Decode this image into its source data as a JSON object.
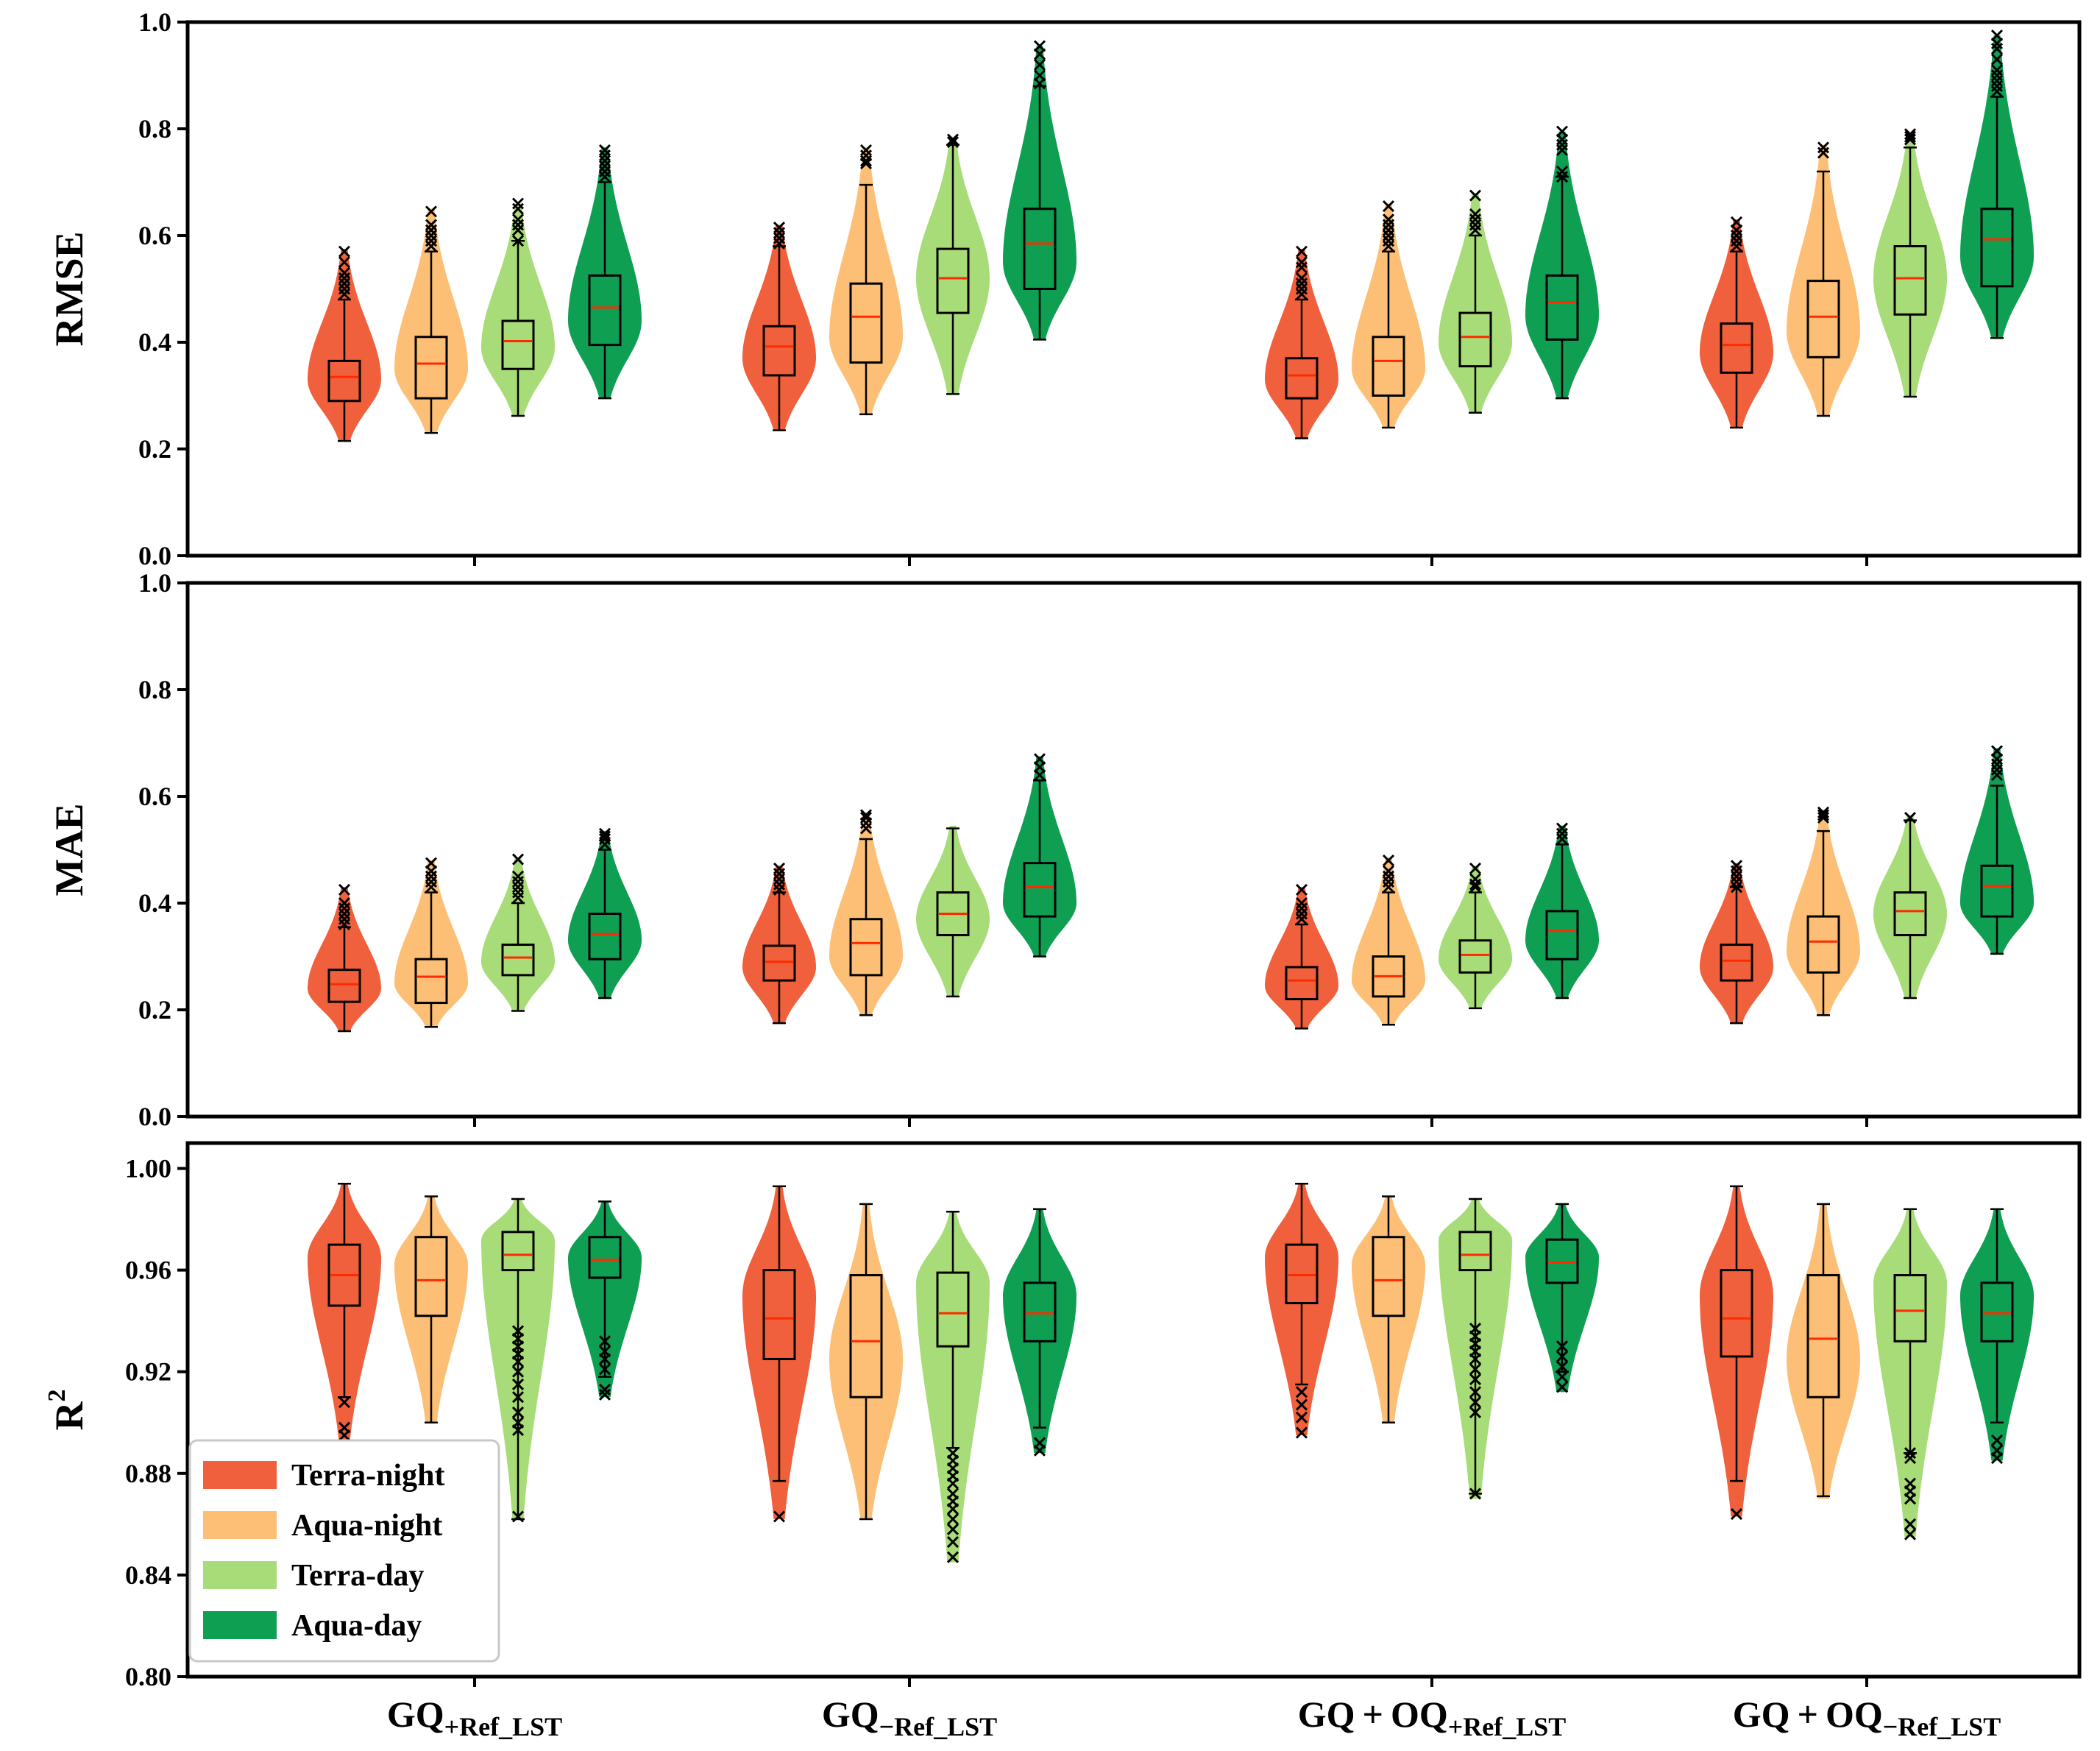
{
  "chart_data": {
    "type": "violin",
    "groups": [
      {
        "main": "GQ",
        "sub": "+Ref_LST"
      },
      {
        "main": "GQ",
        "sub": "−Ref_LST"
      },
      {
        "main": "GQ + OQ",
        "sub": "+Ref_LST"
      },
      {
        "main": "GQ + OQ",
        "sub": "−Ref_LST"
      }
    ],
    "series": [
      {
        "name": "Terra-night",
        "color": "#F0603C"
      },
      {
        "name": "Aqua-night",
        "color": "#FDBF76"
      },
      {
        "name": "Terra-day",
        "color": "#A8DC78"
      },
      {
        "name": "Aqua-day",
        "color": "#0E9F52"
      }
    ],
    "legend_position": "lower-left of bottom panel",
    "panels": [
      {
        "ylabel": "RMSE",
        "ylim": [
          0.0,
          1.0
        ],
        "yticks": [
          "0.0",
          "0.2",
          "0.4",
          "0.6",
          "0.8",
          "1.0"
        ],
        "ytick_values": [
          0.0,
          0.2,
          0.4,
          0.6,
          0.8,
          1.0
        ],
        "data": [
          [
            {
              "min": 0.215,
              "q1": 0.29,
              "median": 0.335,
              "q3": 0.365,
              "max": 0.48,
              "peak": 0.33,
              "vmax": 0.575,
              "outliers": [
                0.57,
                0.55,
                0.53,
                0.52,
                0.51,
                0.5,
                0.49
              ]
            },
            {
              "min": 0.23,
              "q1": 0.295,
              "median": 0.36,
              "q3": 0.41,
              "max": 0.57,
              "peak": 0.35,
              "vmax": 0.65,
              "outliers": [
                0.645,
                0.62,
                0.61,
                0.6,
                0.59,
                0.58
              ]
            },
            {
              "min": 0.262,
              "q1": 0.35,
              "median": 0.402,
              "q3": 0.44,
              "max": 0.59,
              "peak": 0.39,
              "vmax": 0.66,
              "outliers": [
                0.66,
                0.65,
                0.63,
                0.62,
                0.61,
                0.59
              ]
            },
            {
              "min": 0.295,
              "q1": 0.395,
              "median": 0.465,
              "q3": 0.525,
              "max": 0.7,
              "peak": 0.44,
              "vmax": 0.765,
              "outliers": [
                0.76,
                0.75,
                0.74,
                0.73,
                0.72,
                0.71
              ]
            }
          ],
          [
            {
              "min": 0.235,
              "q1": 0.338,
              "median": 0.392,
              "q3": 0.43,
              "max": 0.58,
              "peak": 0.37,
              "vmax": 0.62,
              "outliers": [
                0.615,
                0.605,
                0.595,
                0.585
              ]
            },
            {
              "min": 0.265,
              "q1": 0.362,
              "median": 0.448,
              "q3": 0.51,
              "max": 0.695,
              "peak": 0.41,
              "vmax": 0.765,
              "outliers": [
                0.76,
                0.75,
                0.74,
                0.735
              ]
            },
            {
              "min": 0.303,
              "q1": 0.455,
              "median": 0.52,
              "q3": 0.575,
              "max": 0.77,
              "peak": 0.52,
              "vmax": 0.785,
              "outliers": [
                0.78,
                0.775
              ]
            },
            {
              "min": 0.405,
              "q1": 0.5,
              "median": 0.585,
              "q3": 0.65,
              "max": 0.88,
              "peak": 0.55,
              "vmax": 0.955,
              "outliers": [
                0.955,
                0.94,
                0.92,
                0.9,
                0.885
              ]
            }
          ],
          [
            {
              "min": 0.22,
              "q1": 0.295,
              "median": 0.338,
              "q3": 0.37,
              "max": 0.48,
              "peak": 0.33,
              "vmax": 0.575,
              "outliers": [
                0.57,
                0.55,
                0.54,
                0.52,
                0.51,
                0.5,
                0.49
              ]
            },
            {
              "min": 0.24,
              "q1": 0.3,
              "median": 0.365,
              "q3": 0.41,
              "max": 0.57,
              "peak": 0.35,
              "vmax": 0.66,
              "outliers": [
                0.655,
                0.63,
                0.62,
                0.61,
                0.6,
                0.59,
                0.58
              ]
            },
            {
              "min": 0.268,
              "q1": 0.355,
              "median": 0.41,
              "q3": 0.455,
              "max": 0.6,
              "peak": 0.4,
              "vmax": 0.68,
              "outliers": [
                0.675,
                0.64,
                0.63,
                0.62,
                0.61
              ]
            },
            {
              "min": 0.295,
              "q1": 0.405,
              "median": 0.475,
              "q3": 0.525,
              "max": 0.71,
              "peak": 0.45,
              "vmax": 0.795,
              "outliers": [
                0.795,
                0.78,
                0.77,
                0.76,
                0.72,
                0.71
              ]
            }
          ],
          [
            {
              "min": 0.24,
              "q1": 0.343,
              "median": 0.395,
              "q3": 0.435,
              "max": 0.57,
              "peak": 0.38,
              "vmax": 0.63,
              "outliers": [
                0.625,
                0.61,
                0.6,
                0.59,
                0.58
              ]
            },
            {
              "min": 0.262,
              "q1": 0.372,
              "median": 0.448,
              "q3": 0.515,
              "max": 0.72,
              "peak": 0.42,
              "vmax": 0.77,
              "outliers": [
                0.765,
                0.755
              ]
            },
            {
              "min": 0.298,
              "q1": 0.452,
              "median": 0.52,
              "q3": 0.58,
              "max": 0.765,
              "peak": 0.52,
              "vmax": 0.79,
              "outliers": [
                0.79,
                0.785,
                0.78
              ]
            },
            {
              "min": 0.408,
              "q1": 0.505,
              "median": 0.593,
              "q3": 0.65,
              "max": 0.86,
              "peak": 0.56,
              "vmax": 0.975,
              "outliers": [
                0.975,
                0.96,
                0.95,
                0.93,
                0.91,
                0.9,
                0.89,
                0.88,
                0.87
              ]
            }
          ]
        ]
      },
      {
        "ylabel": "MAE",
        "ylim": [
          0.0,
          1.0
        ],
        "yticks": [
          "0.0",
          "0.2",
          "0.4",
          "0.6",
          "0.8",
          "1.0"
        ],
        "ytick_values": [
          0.0,
          0.2,
          0.4,
          0.6,
          0.8,
          1.0
        ],
        "data": [
          [
            {
              "min": 0.16,
              "q1": 0.215,
              "median": 0.248,
              "q3": 0.275,
              "max": 0.355,
              "peak": 0.24,
              "vmax": 0.43,
              "outliers": [
                0.425,
                0.4,
                0.39,
                0.38,
                0.37,
                0.36
              ]
            },
            {
              "min": 0.168,
              "q1": 0.213,
              "median": 0.262,
              "q3": 0.295,
              "max": 0.42,
              "peak": 0.25,
              "vmax": 0.48,
              "outliers": [
                0.475,
                0.46,
                0.45,
                0.44,
                0.43
              ]
            },
            {
              "min": 0.198,
              "q1": 0.265,
              "median": 0.298,
              "q3": 0.322,
              "max": 0.4,
              "peak": 0.29,
              "vmax": 0.485,
              "outliers": [
                0.482,
                0.45,
                0.44,
                0.43,
                0.42,
                0.41
              ]
            },
            {
              "min": 0.222,
              "q1": 0.295,
              "median": 0.342,
              "q3": 0.38,
              "max": 0.5,
              "peak": 0.33,
              "vmax": 0.535,
              "outliers": [
                0.53,
                0.525,
                0.52,
                0.51
              ]
            }
          ],
          [
            {
              "min": 0.175,
              "q1": 0.255,
              "median": 0.29,
              "q3": 0.32,
              "max": 0.42,
              "peak": 0.28,
              "vmax": 0.47,
              "outliers": [
                0.465,
                0.455,
                0.445,
                0.435,
                0.425
              ]
            },
            {
              "min": 0.19,
              "q1": 0.265,
              "median": 0.325,
              "q3": 0.37,
              "max": 0.52,
              "peak": 0.3,
              "vmax": 0.57,
              "outliers": [
                0.565,
                0.56,
                0.55,
                0.54
              ]
            },
            {
              "min": 0.225,
              "q1": 0.34,
              "median": 0.38,
              "q3": 0.42,
              "max": 0.54,
              "peak": 0.37,
              "vmax": 0.545,
              "outliers": []
            },
            {
              "min": 0.3,
              "q1": 0.375,
              "median": 0.43,
              "q3": 0.475,
              "max": 0.63,
              "peak": 0.4,
              "vmax": 0.675,
              "outliers": [
                0.67,
                0.655,
                0.64
              ]
            }
          ],
          [
            {
              "min": 0.165,
              "q1": 0.22,
              "median": 0.255,
              "q3": 0.28,
              "max": 0.36,
              "peak": 0.245,
              "vmax": 0.43,
              "outliers": [
                0.425,
                0.4,
                0.39,
                0.38,
                0.37
              ]
            },
            {
              "min": 0.172,
              "q1": 0.225,
              "median": 0.263,
              "q3": 0.3,
              "max": 0.42,
              "peak": 0.255,
              "vmax": 0.485,
              "outliers": [
                0.48,
                0.46,
                0.45,
                0.44,
                0.43
              ]
            },
            {
              "min": 0.203,
              "q1": 0.27,
              "median": 0.303,
              "q3": 0.33,
              "max": 0.42,
              "peak": 0.295,
              "vmax": 0.47,
              "outliers": [
                0.465,
                0.445,
                0.435,
                0.43
              ]
            },
            {
              "min": 0.222,
              "q1": 0.295,
              "median": 0.348,
              "q3": 0.385,
              "max": 0.51,
              "peak": 0.33,
              "vmax": 0.545,
              "outliers": [
                0.54,
                0.53,
                0.52
              ]
            }
          ],
          [
            {
              "min": 0.175,
              "q1": 0.255,
              "median": 0.292,
              "q3": 0.322,
              "max": 0.43,
              "peak": 0.28,
              "vmax": 0.475,
              "outliers": [
                0.47,
                0.46,
                0.45,
                0.44,
                0.43
              ]
            },
            {
              "min": 0.19,
              "q1": 0.27,
              "median": 0.328,
              "q3": 0.375,
              "max": 0.535,
              "peak": 0.31,
              "vmax": 0.575,
              "outliers": [
                0.57,
                0.565,
                0.56
              ]
            },
            {
              "min": 0.222,
              "q1": 0.34,
              "median": 0.385,
              "q3": 0.42,
              "max": 0.555,
              "peak": 0.38,
              "vmax": 0.565,
              "outliers": [
                0.56
              ]
            },
            {
              "min": 0.305,
              "q1": 0.375,
              "median": 0.432,
              "q3": 0.47,
              "max": 0.62,
              "peak": 0.4,
              "vmax": 0.69,
              "outliers": [
                0.685,
                0.67,
                0.66,
                0.65,
                0.64
              ]
            }
          ]
        ]
      },
      {
        "ylabel": "R",
        "ylabel_sup": "2",
        "ylim": [
          0.8,
          1.01
        ],
        "yticks": [
          "0.80",
          "0.84",
          "0.88",
          "0.92",
          "0.96",
          "1.00"
        ],
        "ytick_values": [
          0.8,
          0.84,
          0.88,
          0.92,
          0.96,
          1.0
        ],
        "data": [
          [
            {
              "min": 0.91,
              "q1": 0.946,
              "median": 0.958,
              "q3": 0.97,
              "max": 0.994,
              "peak": 0.965,
              "vmin": 0.893,
              "outliers": [
                0.908,
                0.898,
                0.895
              ]
            },
            {
              "min": 0.9,
              "q1": 0.942,
              "median": 0.956,
              "q3": 0.973,
              "max": 0.989,
              "peak": 0.962,
              "vmin": 0.9,
              "outliers": []
            },
            {
              "min": 0.862,
              "q1": 0.96,
              "median": 0.966,
              "q3": 0.975,
              "max": 0.988,
              "peak": 0.972,
              "vmin": 0.862,
              "outliers": [
                0.936,
                0.933,
                0.93,
                0.927,
                0.924,
                0.92,
                0.915,
                0.91,
                0.904,
                0.9,
                0.897,
                0.863
              ]
            },
            {
              "min": 0.918,
              "q1": 0.957,
              "median": 0.964,
              "q3": 0.973,
              "max": 0.987,
              "peak": 0.965,
              "vmin": 0.91,
              "outliers": [
                0.932,
                0.928,
                0.925,
                0.921,
                0.913,
                0.911
              ]
            }
          ],
          [
            {
              "min": 0.877,
              "q1": 0.925,
              "median": 0.941,
              "q3": 0.96,
              "max": 0.993,
              "peak": 0.95,
              "vmin": 0.862,
              "outliers": [
                0.863
              ]
            },
            {
              "min": 0.862,
              "q1": 0.91,
              "median": 0.932,
              "q3": 0.958,
              "max": 0.986,
              "peak": 0.925,
              "vmin": 0.862,
              "outliers": []
            },
            {
              "min": 0.89,
              "q1": 0.93,
              "median": 0.943,
              "q3": 0.959,
              "max": 0.983,
              "peak": 0.955,
              "vmin": 0.845,
              "outliers": [
                0.888,
                0.885,
                0.882,
                0.879,
                0.876,
                0.872,
                0.869,
                0.866,
                0.862,
                0.858,
                0.853,
                0.847
              ]
            },
            {
              "min": 0.898,
              "q1": 0.932,
              "median": 0.943,
              "q3": 0.955,
              "max": 0.984,
              "peak": 0.95,
              "vmin": 0.888,
              "outliers": [
                0.892,
                0.889
              ]
            }
          ],
          [
            {
              "min": 0.915,
              "q1": 0.947,
              "median": 0.958,
              "q3": 0.97,
              "max": 0.994,
              "peak": 0.965,
              "vmin": 0.895,
              "outliers": [
                0.912,
                0.907,
                0.902,
                0.896
              ]
            },
            {
              "min": 0.9,
              "q1": 0.942,
              "median": 0.956,
              "q3": 0.973,
              "max": 0.989,
              "peak": 0.962,
              "vmin": 0.9,
              "outliers": []
            },
            {
              "min": 0.872,
              "q1": 0.96,
              "median": 0.966,
              "q3": 0.975,
              "max": 0.988,
              "peak": 0.972,
              "vmin": 0.87,
              "outliers": [
                0.937,
                0.934,
                0.931,
                0.928,
                0.925,
                0.921,
                0.917,
                0.912,
                0.908,
                0.904,
                0.872
              ]
            },
            {
              "min": 0.92,
              "q1": 0.955,
              "median": 0.963,
              "q3": 0.972,
              "max": 0.986,
              "peak": 0.965,
              "vmin": 0.912,
              "outliers": [
                0.93,
                0.926,
                0.922,
                0.918,
                0.914
              ]
            }
          ],
          [
            {
              "min": 0.877,
              "q1": 0.926,
              "median": 0.941,
              "q3": 0.96,
              "max": 0.993,
              "peak": 0.95,
              "vmin": 0.863,
              "outliers": [
                0.864
              ]
            },
            {
              "min": 0.871,
              "q1": 0.91,
              "median": 0.933,
              "q3": 0.958,
              "max": 0.986,
              "peak": 0.925,
              "vmin": 0.87,
              "outliers": []
            },
            {
              "min": 0.888,
              "q1": 0.932,
              "median": 0.944,
              "q3": 0.958,
              "max": 0.984,
              "peak": 0.955,
              "vmin": 0.855,
              "outliers": [
                0.888,
                0.886,
                0.876,
                0.873,
                0.87,
                0.86,
                0.856
              ]
            },
            {
              "min": 0.9,
              "q1": 0.932,
              "median": 0.943,
              "q3": 0.955,
              "max": 0.984,
              "peak": 0.95,
              "vmin": 0.885,
              "outliers": [
                0.893,
                0.889,
                0.886
              ]
            }
          ]
        ]
      }
    ]
  }
}
